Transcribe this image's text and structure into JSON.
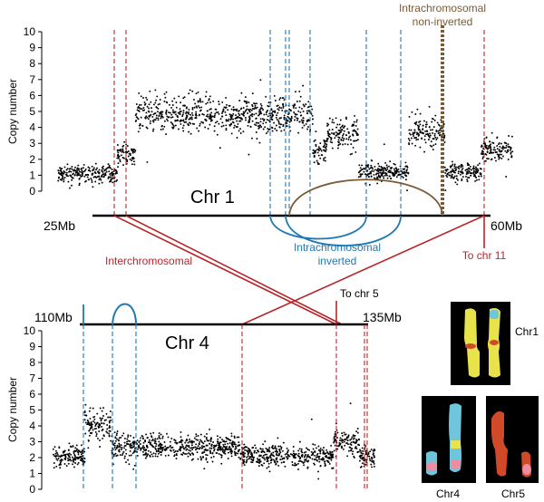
{
  "colors": {
    "interchromosomal": "#b5262b",
    "intra_inverted": "#1f78b4",
    "intra_non_inverted": "#7a5a35",
    "points": "#000000",
    "chr_yellow": "#e8e34a",
    "chr_cyan": "#6fc6dc",
    "chr_red": "#d04a2a",
    "chr_pink": "#f08ca0",
    "panel_bg": "#000000"
  },
  "chr1": {
    "title": "Chr 1",
    "start_label": "25Mb",
    "end_label": "60Mb",
    "ylabel": "Copy number",
    "yticks": [
      "0",
      "1",
      "2",
      "3",
      "4",
      "5",
      "6",
      "7",
      "8",
      "9",
      "10"
    ]
  },
  "chr4": {
    "title": "Chr 4",
    "start_label": "110Mb",
    "end_label": "135Mb",
    "ylabel": "Copy number",
    "yticks": [
      "0",
      "1",
      "2",
      "3",
      "4",
      "5",
      "6",
      "7",
      "8",
      "9",
      "10"
    ]
  },
  "annotations": {
    "interchromosomal": "Interchromosomal",
    "intra_inverted_l1": "Intrachromosomal",
    "intra_inverted_l2": "inverted",
    "intra_noninv_l1": "Intrachromosomal",
    "intra_noninv_l2": "non-inverted",
    "to_chr11": "To chr 11",
    "to_chr5": "To chr 5"
  },
  "karyotype": {
    "chr1": "Chr1",
    "chr4": "Chr4",
    "chr5": "Chr5"
  },
  "chart_data": [
    {
      "type": "scatter",
      "title": "Chr 1",
      "ylabel": "Copy number",
      "ylim": [
        0,
        10
      ],
      "segments": [
        {
          "x_from": 0.0,
          "x_to": 0.13,
          "copy_number": 1.1
        },
        {
          "x_from": 0.13,
          "x_to": 0.17,
          "copy_number": 2.3
        },
        {
          "x_from": 0.17,
          "x_to": 0.56,
          "copy_number": 4.8
        },
        {
          "x_from": 0.56,
          "x_to": 0.59,
          "copy_number": 2.5
        },
        {
          "x_from": 0.59,
          "x_to": 0.66,
          "copy_number": 3.6
        },
        {
          "x_from": 0.66,
          "x_to": 0.77,
          "copy_number": 1.2
        },
        {
          "x_from": 0.77,
          "x_to": 0.85,
          "copy_number": 3.7
        },
        {
          "x_from": 0.85,
          "x_to": 0.93,
          "copy_number": 1.2
        },
        {
          "x_from": 0.93,
          "x_to": 1.0,
          "copy_number": 2.6
        }
      ]
    },
    {
      "type": "scatter",
      "title": "Chr 4",
      "ylabel": "Copy number",
      "ylim": [
        0,
        10
      ],
      "segments": [
        {
          "x_from": 0.0,
          "x_to": 0.1,
          "copy_number": 2.0
        },
        {
          "x_from": 0.1,
          "x_to": 0.18,
          "copy_number": 4.1
        },
        {
          "x_from": 0.18,
          "x_to": 0.58,
          "copy_number": 2.7
        },
        {
          "x_from": 0.58,
          "x_to": 0.87,
          "copy_number": 2.1
        },
        {
          "x_from": 0.87,
          "x_to": 0.95,
          "copy_number": 3.0
        },
        {
          "x_from": 0.95,
          "x_to": 1.0,
          "copy_number": 2.1
        }
      ]
    }
  ]
}
